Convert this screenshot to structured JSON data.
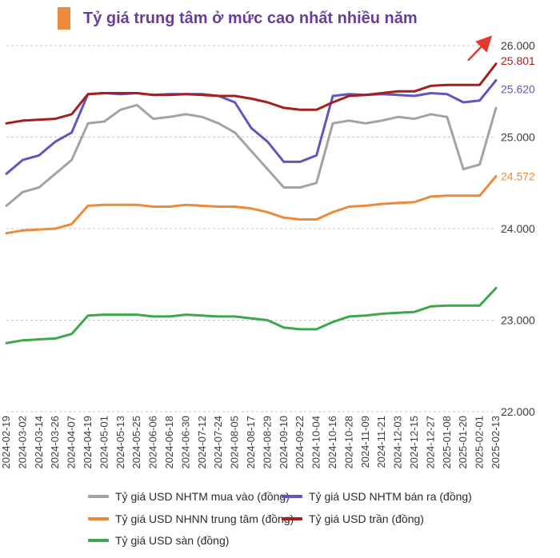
{
  "header": {
    "title": "Tỷ giá trung tâm ở mức cao nhất nhiều năm"
  },
  "chart_data": {
    "type": "line",
    "title": "Tỷ giá trung tâm ở mức cao nhất nhiều năm",
    "ylim": [
      22000,
      26000
    ],
    "yticks": [
      22000,
      23000,
      24000,
      25000,
      26000
    ],
    "ytick_labels": [
      "22.000",
      "23.000",
      "24.000",
      "25.000",
      "26.000"
    ],
    "grid": true,
    "legend_position": "bottom",
    "x": [
      "2024-02-19",
      "2024-03-02",
      "2024-03-14",
      "2024-03-26",
      "2024-04-07",
      "2024-04-19",
      "2024-05-01",
      "2024-05-13",
      "2024-05-25",
      "2024-06-06",
      "2024-06-18",
      "2024-06-30",
      "2024-07-12",
      "2024-07-24",
      "2024-08-05",
      "2024-08-17",
      "2024-08-29",
      "2024-09-10",
      "2024-09-22",
      "2024-10-04",
      "2024-10-16",
      "2024-10-28",
      "2024-11-09",
      "2024-11-21",
      "2024-12-03",
      "2024-12-15",
      "2024-12-27",
      "2025-01-08",
      "2025-01-20",
      "2025-02-01",
      "2025-02-13"
    ],
    "x_tick_labels": [
      "2024-02-19",
      "2024-03-02",
      "2024-03-14",
      "2024-03-26",
      "2024-04-07",
      "2024-04-19",
      "2024-05-01",
      "2024-05-13",
      "2024-05-25",
      "2024-06-06",
      "2024-06-18",
      "2024-06-30",
      "2024-07-12",
      "2024-07-24",
      "2024-08-05",
      "2024-08-17",
      "2024-08-29",
      "2024-09-10",
      "2024-09-22",
      "2024-10-04",
      "2024-10-16",
      "2024-10-28",
      "2024-11-09",
      "2024-11-21",
      "2024-12-03",
      "2024-12-15",
      "2024-12-27",
      "2025-01-08",
      "2025-01-20",
      "2025-02-01",
      "2025-02-13"
    ],
    "series": [
      {
        "name": "Tỷ giá USD NHTM mua vào (đồng)",
        "color": "#a3a3a3",
        "values": [
          24250,
          24400,
          24450,
          24600,
          24750,
          25150,
          25170,
          25300,
          25350,
          25200,
          25220,
          25250,
          25220,
          25150,
          25050,
          24850,
          24650,
          24450,
          24450,
          24500,
          25150,
          25180,
          25150,
          25180,
          25220,
          25200,
          25250,
          25220,
          24650,
          24700,
          25320
        ]
      },
      {
        "name": "Tỷ giá USD NHTM bán ra (đồng)",
        "color": "#6554c0",
        "values": [
          24600,
          24750,
          24800,
          24950,
          25050,
          25470,
          25480,
          25470,
          25480,
          25460,
          25470,
          25470,
          25470,
          25450,
          25380,
          25100,
          24950,
          24730,
          24730,
          24800,
          25450,
          25470,
          25460,
          25470,
          25460,
          25450,
          25480,
          25470,
          25380,
          25400,
          25620
        ]
      },
      {
        "name": "Tỷ giá USD NHNN trung tâm (đồng)",
        "color": "#ec8a3c",
        "values": [
          23950,
          23980,
          23990,
          24000,
          24050,
          24250,
          24260,
          24260,
          24260,
          24240,
          24240,
          24260,
          24250,
          24240,
          24240,
          24220,
          24180,
          24120,
          24100,
          24100,
          24180,
          24240,
          24250,
          24270,
          24280,
          24290,
          24350,
          24360,
          24360,
          24360,
          24572
        ]
      },
      {
        "name": "Tỷ giá USD trần (đồng)",
        "color": "#a3201e",
        "values": [
          25150,
          25180,
          25190,
          25200,
          25250,
          25470,
          25480,
          25480,
          25480,
          25460,
          25460,
          25470,
          25460,
          25450,
          25450,
          25420,
          25380,
          25320,
          25300,
          25300,
          25380,
          25450,
          25460,
          25480,
          25500,
          25500,
          25560,
          25570,
          25570,
          25570,
          25801
        ]
      },
      {
        "name": "Tỷ giá USD sàn (đồng)",
        "color": "#3da84b",
        "values": [
          22750,
          22780,
          22790,
          22800,
          22850,
          23050,
          23060,
          23060,
          23060,
          23040,
          23040,
          23060,
          23050,
          23040,
          23040,
          23020,
          23000,
          22920,
          22900,
          22900,
          22980,
          23040,
          23050,
          23070,
          23080,
          23090,
          23150,
          23160,
          23160,
          23160,
          23350
        ]
      }
    ],
    "annotations": {
      "end_labels": [
        {
          "series": "Tỷ giá USD trần (đồng)",
          "text": "25.801",
          "color": "#a3201e"
        },
        {
          "series": "Tỷ giá USD NHTM bán ra (đồng)",
          "text": "25.620",
          "color": "#6554c0"
        },
        {
          "series": "Tỷ giá USD NHNN trung tâm (đồng)",
          "text": "24.572",
          "color": "#ec8a3c"
        }
      ],
      "arrow": {
        "direction": "up-right",
        "color": "#e23b2e"
      }
    }
  }
}
